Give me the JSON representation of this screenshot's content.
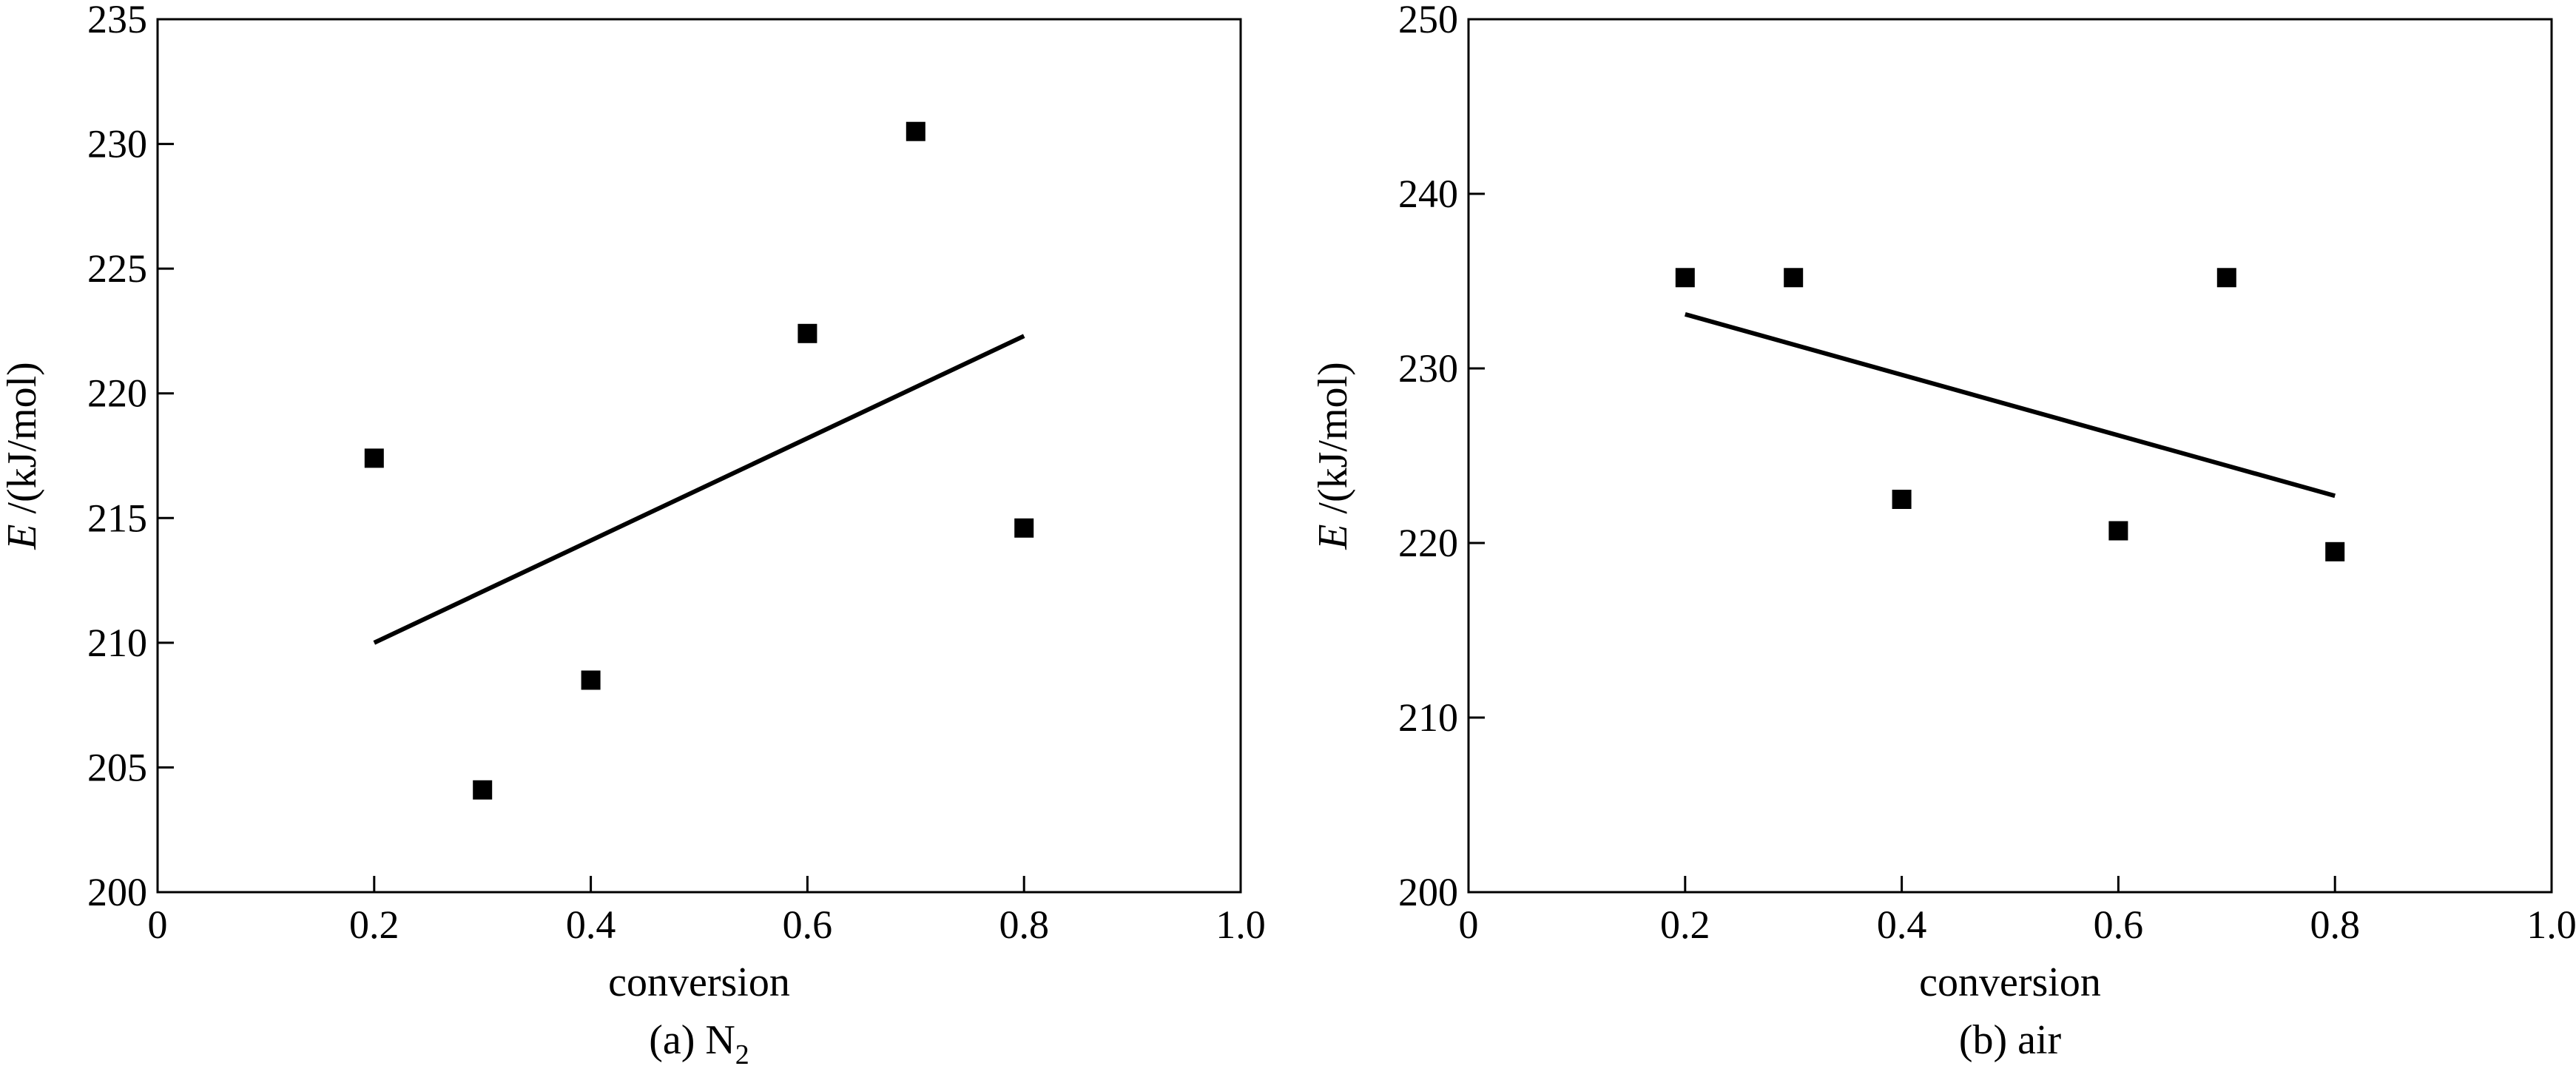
{
  "chart_data": [
    {
      "type": "scatter",
      "caption": "(a) N",
      "caption_subscript": "2",
      "xlabel": "conversion",
      "ylabel_var": "E",
      "ylabel_unit": " /(kJ/mol)",
      "xlim": [
        0,
        1.0
      ],
      "ylim": [
        200,
        235
      ],
      "xticks": [
        "0",
        "0.2",
        "0.4",
        "0.6",
        "0.8",
        "1.0"
      ],
      "yticks": [
        "200",
        "205",
        "210",
        "215",
        "220",
        "225",
        "230",
        "235"
      ],
      "points": [
        {
          "x": 0.2,
          "y": 217.4
        },
        {
          "x": 0.3,
          "y": 204.1
        },
        {
          "x": 0.4,
          "y": 208.5
        },
        {
          "x": 0.6,
          "y": 222.4
        },
        {
          "x": 0.7,
          "y": 230.5
        },
        {
          "x": 0.8,
          "y": 214.6
        }
      ],
      "fit_line": [
        {
          "x": 0.2,
          "y": 210.0
        },
        {
          "x": 0.8,
          "y": 222.3
        }
      ]
    },
    {
      "type": "scatter",
      "caption": "(b) air",
      "caption_subscript": "",
      "xlabel": "conversion",
      "ylabel_var": "E",
      "ylabel_unit": " /(kJ/mol)",
      "xlim": [
        0,
        1.0
      ],
      "ylim": [
        200,
        250
      ],
      "xticks": [
        "0",
        "0.2",
        "0.4",
        "0.6",
        "0.8",
        "1.0"
      ],
      "yticks": [
        "200",
        "210",
        "220",
        "230",
        "240",
        "250"
      ],
      "points": [
        {
          "x": 0.2,
          "y": 235.2
        },
        {
          "x": 0.3,
          "y": 235.2
        },
        {
          "x": 0.4,
          "y": 222.5
        },
        {
          "x": 0.6,
          "y": 220.7
        },
        {
          "x": 0.7,
          "y": 235.2
        },
        {
          "x": 0.8,
          "y": 219.5
        }
      ],
      "fit_line": [
        {
          "x": 0.2,
          "y": 233.1
        },
        {
          "x": 0.8,
          "y": 222.7
        }
      ]
    }
  ]
}
